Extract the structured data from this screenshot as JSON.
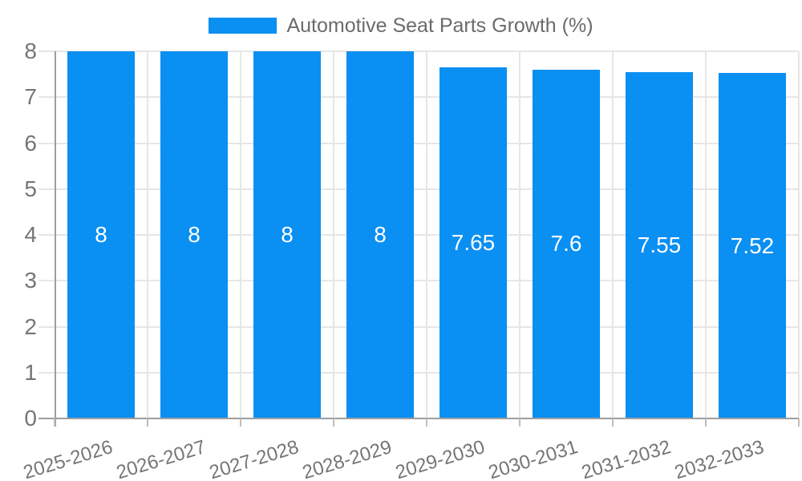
{
  "legend": {
    "label": "Automotive Seat Parts Growth (%)"
  },
  "colors": {
    "bar": "#0a8ff2",
    "grid_line": "#e6e6e6",
    "axis_line": "#9e9e9e",
    "tick_text": "#757575",
    "legend_text": "#6b6b6b",
    "bar_label_text": "#ffffff",
    "background": "#ffffff"
  },
  "chart_data": {
    "type": "bar",
    "title": "Automotive Seat Parts Growth (%)",
    "categories": [
      "2025-2026",
      "2026-2027",
      "2027-2028",
      "2028-2029",
      "2029-2030",
      "2030-2031",
      "2031-2032",
      "2032-2033"
    ],
    "values": [
      8,
      8,
      8,
      8,
      7.65,
      7.6,
      7.55,
      7.52
    ],
    "value_labels": [
      "8",
      "8",
      "8",
      "8",
      "7.65",
      "7.6",
      "7.55",
      "7.52"
    ],
    "xlabel": "",
    "ylabel": "",
    "ylim": [
      0,
      8
    ],
    "yticks": [
      0,
      1,
      2,
      3,
      4,
      5,
      6,
      7,
      8
    ],
    "grid": true,
    "legend_position": "top",
    "bar_color": "#0a8ff2",
    "value_label_position": "inside-center"
  }
}
